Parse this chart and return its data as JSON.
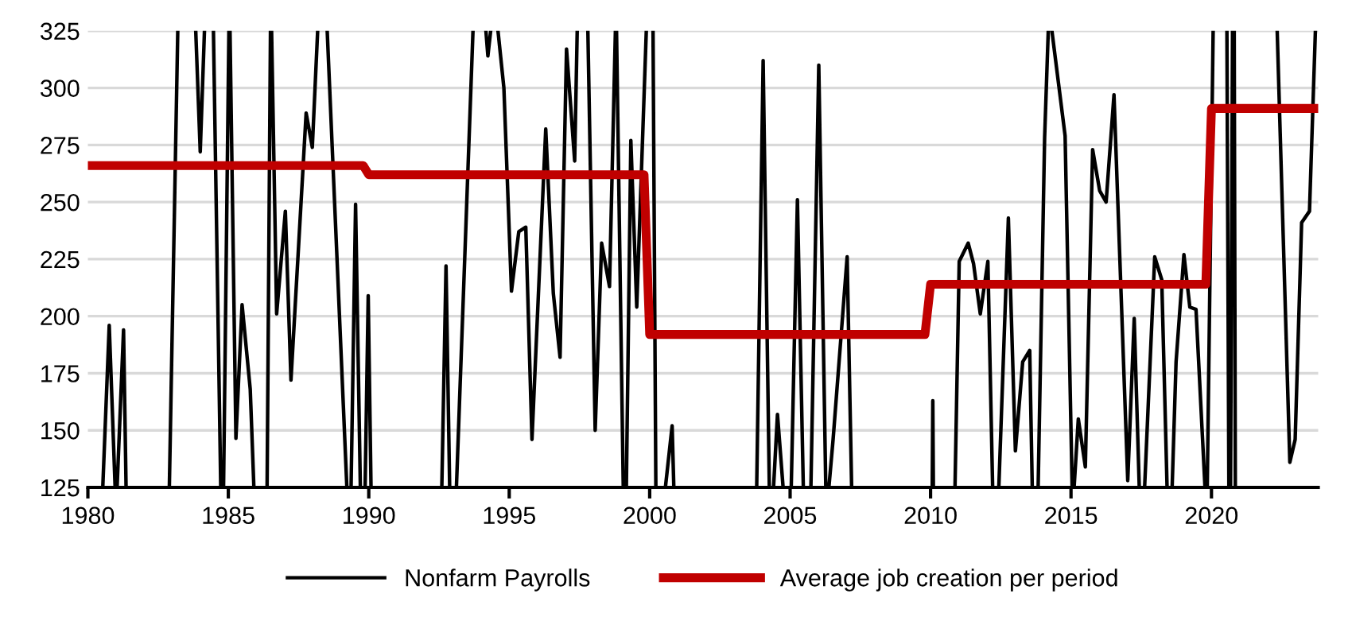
{
  "chart_data": {
    "type": "line",
    "xlim": [
      1980,
      2023.8
    ],
    "xticks": [
      1980,
      1985,
      1990,
      1995,
      2000,
      2005,
      2010,
      2015,
      2020
    ],
    "ylim": [
      125,
      325
    ],
    "yticks": [
      125,
      150,
      175,
      200,
      225,
      250,
      275,
      300,
      325
    ],
    "grid": "y",
    "legend": "bottom",
    "line_style": "solid",
    "marker": "none",
    "series": [
      {
        "name": "Nonfarm Payrolls",
        "color": "#000000",
        "x": [
          1980.53,
          1980.76,
          1980.97,
          1981.0,
          1981.04,
          1981.27,
          1981.36,
          1982.0,
          1982.9,
          1983.2,
          1983.5,
          1983.84,
          1984.0,
          1984.15,
          1984.3,
          1984.47,
          1984.73,
          1984.78,
          1984.83,
          1985.02,
          1985.04,
          1985.06,
          1985.27,
          1985.49,
          1985.78,
          1985.91,
          1986.1,
          1986.38,
          1986.5,
          1986.52,
          1986.54,
          1986.72,
          1987.03,
          1987.23,
          1987.77,
          1987.99,
          1988.18,
          1988.3,
          1988.52,
          1989.22,
          1989.3,
          1989.37,
          1989.53,
          1989.7,
          1989.8,
          1989.87,
          1989.98,
          1990.08,
          1991.0,
          1992.6,
          1992.75,
          1992.88,
          1993.0,
          1993.12,
          1993.71,
          1993.9,
          1994.17,
          1994.24,
          1994.34,
          1994.5,
          1994.6,
          1994.81,
          1995.08,
          1995.34,
          1995.59,
          1995.81,
          1996.3,
          1996.57,
          1996.81,
          1997.04,
          1997.33,
          1997.42,
          1997.6,
          1997.8,
          1998.06,
          1998.29,
          1998.57,
          1998.78,
          1998.8,
          1998.82,
          1999.06,
          1999.1,
          1999.17,
          1999.33,
          1999.54,
          1999.88,
          2000.0,
          2000.12,
          2000.22,
          2000.4,
          2000.56,
          2000.8,
          2000.86,
          2002.0,
          2003.81,
          2004.04,
          2004.26,
          2004.3,
          2004.41,
          2004.55,
          2004.75,
          2004.9,
          2005.04,
          2005.26,
          2005.47,
          2005.6,
          2005.74,
          2006.02,
          2006.27,
          2006.3,
          2006.38,
          2006.53,
          2007.03,
          2007.19,
          2008.0,
          2010.06,
          2010.08,
          2010.1,
          2010.5,
          2010.87,
          2011.02,
          2011.34,
          2011.53,
          2011.77,
          2012.04,
          2012.21,
          2012.3,
          2012.43,
          2012.77,
          2013.02,
          2013.28,
          2013.53,
          2013.62,
          2013.7,
          2013.83,
          2014.06,
          2014.19,
          2014.25,
          2014.32,
          2014.79,
          2015.04,
          2015.08,
          2015.11,
          2015.26,
          2015.51,
          2015.77,
          2016.02,
          2016.25,
          2016.53,
          2017.02,
          2017.25,
          2017.43,
          2017.5,
          2017.62,
          2017.98,
          2018.23,
          2018.42,
          2018.5,
          2018.6,
          2018.74,
          2019.02,
          2019.23,
          2019.45,
          2019.77,
          2019.8,
          2019.85,
          2020.06,
          2020.3,
          2020.55,
          2020.62,
          2020.65,
          2020.68,
          2020.75,
          2020.78,
          2020.81,
          2020.85,
          2021.5,
          2022.34,
          2022.79,
          2022.98,
          2023.21,
          2023.49,
          2023.7
        ],
        "values": [
          125,
          196,
          125,
          null,
          125,
          194,
          125,
          null,
          125,
          325,
          null,
          325,
          272,
          325,
          null,
          325,
          125,
          null,
          125,
          325,
          null,
          325,
          146.5,
          205,
          168,
          125,
          null,
          125,
          325,
          null,
          325,
          201,
          246,
          172,
          289,
          274,
          325,
          null,
          325,
          125,
          null,
          125,
          249,
          125,
          null,
          125,
          209,
          125,
          null,
          125,
          222,
          125,
          null,
          125,
          325,
          null,
          325,
          314,
          325,
          null,
          325,
          300,
          211,
          237,
          239,
          146,
          282,
          210,
          182,
          317,
          268,
          325,
          null,
          325,
          150,
          232,
          213,
          325,
          null,
          325,
          125,
          null,
          125,
          277,
          204,
          325,
          null,
          325,
          125,
          null,
          125,
          152,
          125,
          null,
          125,
          312,
          125,
          null,
          125,
          157,
          125,
          null,
          125,
          251,
          125,
          null,
          125,
          310,
          125,
          null,
          125,
          146,
          226,
          125,
          null,
          125,
          163,
          125,
          null,
          125,
          224,
          232,
          223,
          201,
          224,
          125,
          null,
          125,
          243,
          141,
          180,
          185,
          125,
          null,
          125,
          278,
          325,
          null,
          325,
          279,
          125,
          null,
          125,
          155,
          134,
          273,
          255,
          250,
          297,
          128,
          199,
          125,
          null,
          125,
          226,
          216,
          125,
          null,
          125,
          180,
          227,
          204,
          203,
          125,
          null,
          125,
          325,
          null,
          325,
          125,
          null,
          125,
          325,
          null,
          325,
          125,
          null,
          325,
          136,
          146,
          241,
          246,
          325
        ]
      },
      {
        "name": "Average job creation per period",
        "color": "#c00000",
        "x": [
          1980,
          1989.8,
          1990,
          1999.8,
          2000,
          2009.8,
          2010,
          2019.8,
          2020,
          2023.8
        ],
        "values": [
          266,
          266,
          262,
          262,
          192,
          192,
          214,
          214,
          291,
          291
        ]
      }
    ]
  }
}
